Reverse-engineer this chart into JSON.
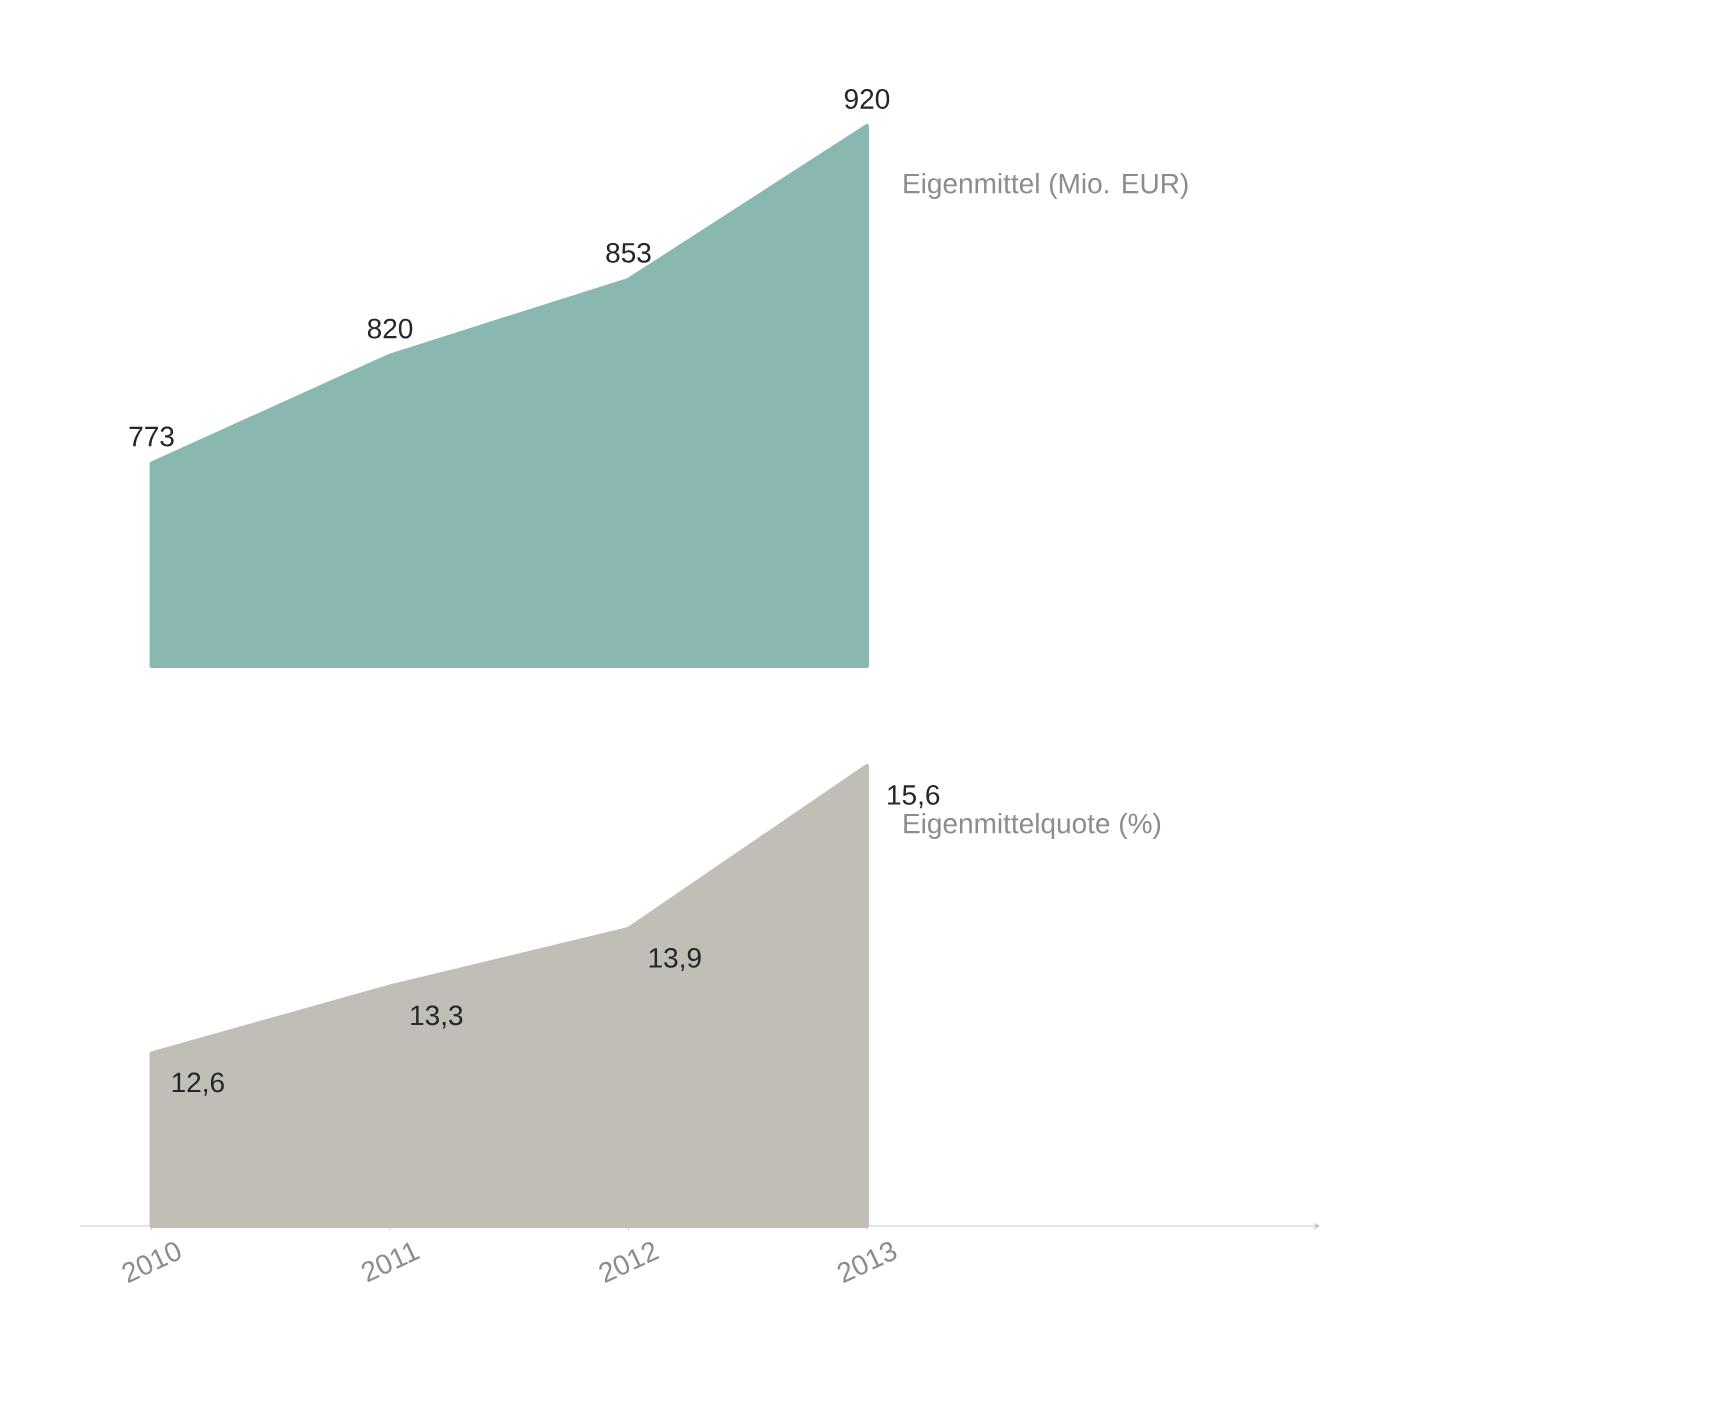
{
  "chart_data": {
    "type": "area",
    "categories": [
      "2010",
      "2011",
      "2012",
      "2013"
    ],
    "tick_labels": "x",
    "series": [
      {
        "name": "Eigenmittel (Mio. EUR)",
        "color": "#88b8b0",
        "values": [
          773,
          820,
          853,
          920
        ],
        "value_labels": [
          "773",
          "820",
          "853",
          "920"
        ]
      },
      {
        "name": "Eigenmittelquote (%)",
        "color": "#c0beb7",
        "axis": "y2",
        "values": [
          12.6,
          13.3,
          13.9,
          15.6
        ],
        "value_labels": [
          "12,6",
          "13,3",
          "13,9",
          "15,6"
        ]
      }
    ]
  }
}
